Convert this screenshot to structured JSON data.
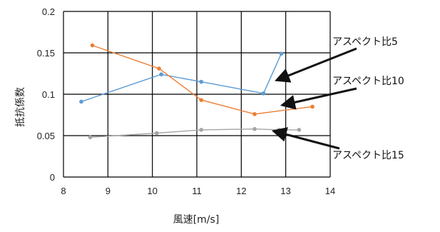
{
  "chart_data": {
    "type": "line",
    "title": "",
    "xlabel": "風速[m/s]",
    "ylabel": "抵抗係数",
    "xlim": [
      8,
      14
    ],
    "ylim": [
      0,
      0.2
    ],
    "x_ticks": [
      "8",
      "9",
      "10",
      "11",
      "12",
      "13",
      "14"
    ],
    "y_ticks": [
      "0",
      "0.05",
      "0.1",
      "0.15",
      "0.2"
    ],
    "grid": true,
    "legend": "none",
    "series": [
      {
        "name": "アスペクト比5",
        "color": "#5b9bd5",
        "x": [
          8.4,
          10.2,
          11.1,
          12.5,
          12.9
        ],
        "y": [
          0.091,
          0.124,
          0.115,
          0.101,
          0.149
        ]
      },
      {
        "name": "アスペクト比10",
        "color": "#ed7d31",
        "x": [
          8.65,
          10.15,
          11.1,
          12.3,
          13.6
        ],
        "y": [
          0.159,
          0.131,
          0.093,
          0.076,
          0.085
        ]
      },
      {
        "name": "アスペクト比15",
        "color": "#a5a5a5",
        "x": [
          8.6,
          10.1,
          11.1,
          12.3,
          12.85,
          13.3
        ],
        "y": [
          0.048,
          0.053,
          0.057,
          0.058,
          0.057,
          0.057
        ]
      }
    ]
  }
}
